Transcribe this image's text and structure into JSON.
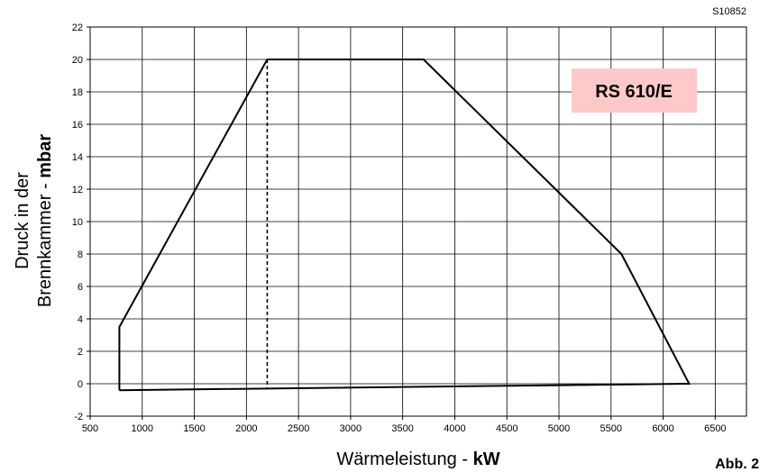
{
  "drawing_code": "S10852",
  "figure_label": "Abb. 2",
  "colors": {
    "badge_fill": "#ffc9c9",
    "line": "#000000",
    "grid": "#000000"
  },
  "chart_data": {
    "type": "line",
    "title": "",
    "xlabel_main": "Wärmeleistung - ",
    "xlabel_unit": "kW",
    "ylabel_line1": "Druck in der",
    "ylabel_line2_main": "Brennkammer - ",
    "ylabel_line2_unit": "mbar",
    "xlim": [
      500,
      6800
    ],
    "ylim": [
      -2,
      22
    ],
    "xticks": [
      "500",
      "1000",
      "1500",
      "2000",
      "2500",
      "3000",
      "3500",
      "4000",
      "4500",
      "5000",
      "5500",
      "6000",
      "6500"
    ],
    "yticks": [
      "-2",
      "0",
      "2",
      "4",
      "6",
      "8",
      "10",
      "12",
      "14",
      "16",
      "18",
      "20",
      "22"
    ],
    "grid": true,
    "model_label": "RS 610/E",
    "series": [
      {
        "style": "solid",
        "x": [
          780,
          780,
          2200,
          3700,
          5600,
          6250,
          780
        ],
        "y": [
          -0.4,
          3.5,
          20,
          20,
          8,
          0,
          -0.4
        ]
      },
      {
        "style": "dashed",
        "x": [
          2200,
          2200
        ],
        "y": [
          20,
          -0.3
        ]
      }
    ]
  }
}
